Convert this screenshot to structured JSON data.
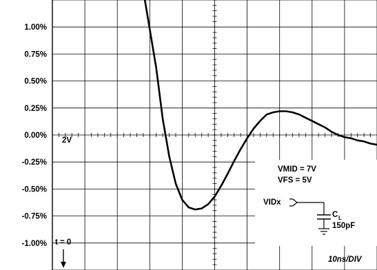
{
  "chart_data": {
    "type": "line",
    "y_tick_labels": [
      "1.00%",
      "0.75%",
      "0.50%",
      "0.25%",
      "0.00%",
      "-0.25%",
      "-0.50%",
      "-0.75%",
      "-1.00%"
    ],
    "y_ticks": [
      1.0,
      0.75,
      0.5,
      0.25,
      0.0,
      -0.25,
      -0.5,
      -0.75,
      -1.0
    ],
    "ylim": [
      -1.25,
      1.25
    ],
    "xlim": [
      0,
      100
    ],
    "x_units": "ns",
    "x_divisions": 10,
    "y_divisions": 10,
    "grid": true,
    "series": [
      {
        "x": [
          0,
          28.5,
          32,
          34,
          36,
          38,
          40,
          42,
          44,
          46,
          48,
          50,
          52,
          54,
          56,
          58,
          60,
          62,
          64,
          66,
          68,
          70,
          72,
          74,
          76,
          78,
          80,
          82,
          84,
          86,
          88,
          90,
          92,
          94,
          96,
          98,
          100
        ],
        "y": [
          null,
          1.25,
          0.62,
          0.15,
          -0.2,
          -0.45,
          -0.6,
          -0.67,
          -0.69,
          -0.68,
          -0.64,
          -0.57,
          -0.47,
          -0.36,
          -0.24,
          -0.13,
          -0.03,
          0.06,
          0.13,
          0.19,
          0.21,
          0.22,
          0.22,
          0.21,
          0.19,
          0.16,
          0.13,
          0.1,
          0.07,
          0.03,
          -0.0,
          -0.02,
          -0.03,
          -0.05,
          -0.06,
          -0.08,
          -0.09
        ]
      }
    ],
    "annotations": {
      "ref_marker": "2V",
      "t0": "t = 0",
      "vmid": "VMID = 7V",
      "vfs": "VFS = 5V",
      "vidx": "VIDx",
      "cl": "C",
      "cl_sub": "L",
      "cap_value": "150pF",
      "time_per_div": "10ns/DIV"
    }
  }
}
